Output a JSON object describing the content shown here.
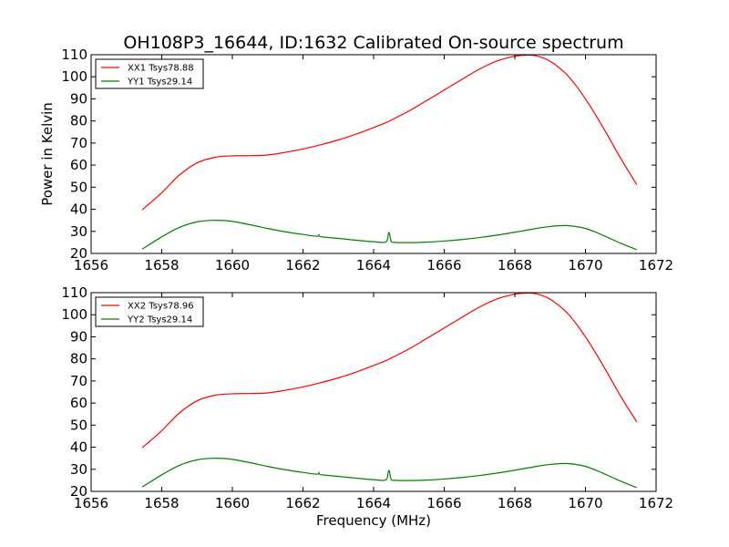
{
  "figure": {
    "title": "OH108P3_16644, ID:1632 Calibrated On-source spectrum",
    "xlabel": "Frequency (MHz)",
    "ylabel": "Power in Kelvin"
  },
  "chart_data": [
    {
      "type": "line",
      "title": "OH108P3_16644, ID:1632 Calibrated On-source spectrum",
      "xlabel": "",
      "ylabel": "Power in Kelvin",
      "xlim": [
        1656,
        1672
      ],
      "ylim": [
        20,
        110
      ],
      "xticks": [
        "1656",
        "1658",
        "1660",
        "1662",
        "1664",
        "1666",
        "1668",
        "1670",
        "1672"
      ],
      "yticks": [
        "20",
        "30",
        "40",
        "50",
        "60",
        "70",
        "80",
        "90",
        "100",
        "110"
      ],
      "grid": false,
      "legend_position": "top-left",
      "series": [
        {
          "name": "XX1 Tsys78.88",
          "color": "#ff0000",
          "x": [
            1657.45,
            1658.0,
            1658.5,
            1659.0,
            1659.5,
            1660.0,
            1660.5,
            1661.0,
            1661.5,
            1662.0,
            1662.5,
            1663.0,
            1663.5,
            1664.0,
            1664.4,
            1664.5,
            1665.0,
            1665.5,
            1666.0,
            1666.5,
            1667.0,
            1667.5,
            1668.0,
            1668.3,
            1668.6,
            1669.0,
            1669.5,
            1670.0,
            1670.5,
            1671.0,
            1671.45
          ],
          "y": [
            39.8,
            47.5,
            55.5,
            61.0,
            63.5,
            64.2,
            64.3,
            64.6,
            65.8,
            67.3,
            69.2,
            71.4,
            74.0,
            77.0,
            79.6,
            80.4,
            84.5,
            89.2,
            94.0,
            98.8,
            103.5,
            107.2,
            109.3,
            109.8,
            109.5,
            107.0,
            100.5,
            90.0,
            77.0,
            63.0,
            51.2
          ]
        },
        {
          "name": "YY1 Tsys29.14",
          "color": "#008000",
          "x": [
            1657.45,
            1658.0,
            1658.5,
            1659.0,
            1659.5,
            1660.0,
            1660.5,
            1661.0,
            1661.5,
            1662.0,
            1662.4,
            1662.45,
            1662.5,
            1663.0,
            1663.5,
            1664.0,
            1664.35,
            1664.42,
            1664.45,
            1664.5,
            1664.6,
            1665.0,
            1665.5,
            1666.0,
            1666.5,
            1667.0,
            1667.5,
            1668.0,
            1668.5,
            1669.0,
            1669.5,
            1670.0,
            1670.5,
            1671.0,
            1671.45
          ],
          "y": [
            22.0,
            27.5,
            31.8,
            34.3,
            35.0,
            34.5,
            33.0,
            31.3,
            29.8,
            28.6,
            27.8,
            28.6,
            27.6,
            26.8,
            26.0,
            25.3,
            25.2,
            29.2,
            28.9,
            25.4,
            25.0,
            24.9,
            25.1,
            25.6,
            26.3,
            27.2,
            28.3,
            29.6,
            31.0,
            32.2,
            32.6,
            31.3,
            28.2,
            24.6,
            21.7
          ]
        }
      ]
    },
    {
      "type": "line",
      "title": "",
      "xlabel": "Frequency (MHz)",
      "ylabel": "",
      "xlim": [
        1656,
        1672
      ],
      "ylim": [
        20,
        110
      ],
      "xticks": [
        "1656",
        "1658",
        "1660",
        "1662",
        "1664",
        "1666",
        "1668",
        "1670",
        "1672"
      ],
      "yticks": [
        "20",
        "30",
        "40",
        "50",
        "60",
        "70",
        "80",
        "90",
        "100",
        "110"
      ],
      "grid": false,
      "legend_position": "top-left",
      "series": [
        {
          "name": "XX2 Tsys78.96",
          "color": "#ff0000",
          "x": [
            1657.45,
            1658.0,
            1658.5,
            1659.0,
            1659.5,
            1660.0,
            1660.5,
            1661.0,
            1661.5,
            1662.0,
            1662.5,
            1663.0,
            1663.5,
            1664.0,
            1664.4,
            1664.5,
            1665.0,
            1665.5,
            1666.0,
            1666.5,
            1667.0,
            1667.5,
            1668.0,
            1668.3,
            1668.6,
            1669.0,
            1669.5,
            1670.0,
            1670.5,
            1671.0,
            1671.45
          ],
          "y": [
            39.8,
            47.5,
            55.5,
            61.0,
            63.5,
            64.2,
            64.3,
            64.6,
            65.8,
            67.3,
            69.2,
            71.4,
            74.0,
            77.0,
            79.6,
            80.4,
            84.5,
            89.2,
            94.0,
            98.8,
            103.5,
            107.2,
            109.3,
            109.8,
            109.5,
            107.0,
            100.5,
            90.0,
            77.0,
            63.0,
            51.5
          ]
        },
        {
          "name": "YY2 Tsys29.14",
          "color": "#008000",
          "x": [
            1657.45,
            1658.0,
            1658.5,
            1659.0,
            1659.5,
            1660.0,
            1660.5,
            1661.0,
            1661.5,
            1662.0,
            1662.4,
            1662.45,
            1662.5,
            1663.0,
            1663.5,
            1664.0,
            1664.35,
            1664.42,
            1664.45,
            1664.5,
            1664.6,
            1665.0,
            1665.5,
            1666.0,
            1666.5,
            1667.0,
            1667.5,
            1668.0,
            1668.5,
            1669.0,
            1669.5,
            1670.0,
            1670.5,
            1671.0,
            1671.45
          ],
          "y": [
            22.0,
            27.5,
            31.8,
            34.3,
            35.0,
            34.5,
            33.0,
            31.3,
            29.8,
            28.6,
            27.8,
            28.6,
            27.6,
            26.8,
            26.0,
            25.3,
            25.2,
            29.2,
            28.9,
            25.4,
            25.0,
            24.9,
            25.1,
            25.6,
            26.3,
            27.2,
            28.3,
            29.6,
            31.0,
            32.2,
            32.6,
            31.3,
            28.2,
            24.6,
            21.7
          ]
        }
      ]
    }
  ]
}
